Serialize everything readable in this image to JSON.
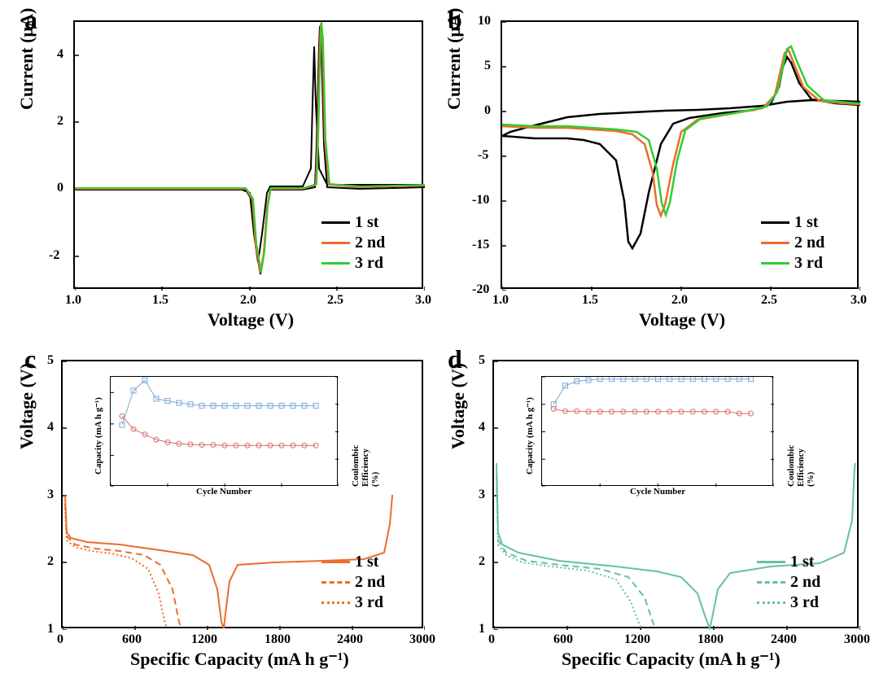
{
  "panels": {
    "a": {
      "letter": "a",
      "type": "line",
      "xlabel": "Voltage (V)",
      "ylabel": "Current (µA)",
      "xlim": [
        1.0,
        3.0
      ],
      "ylim": [
        -3,
        5
      ],
      "xticks": [
        1.0,
        1.5,
        2.0,
        2.5,
        3.0
      ],
      "yticks": [
        -2,
        0,
        2,
        4
      ],
      "series_colors": [
        "#000000",
        "#ee6c2d",
        "#33cc33"
      ],
      "legend_labels": [
        "1 st",
        "2 nd",
        "3 rd"
      ],
      "legend_pos": "bottom-right",
      "line_width": 2
    },
    "b": {
      "letter": "b",
      "type": "line",
      "xlabel": "Voltage (V)",
      "ylabel": "Current (µA)",
      "xlim": [
        1.0,
        3.0
      ],
      "ylim": [
        -20,
        10
      ],
      "xticks": [
        1.0,
        1.5,
        2.0,
        2.5,
        3.0
      ],
      "yticks": [
        -20,
        -15,
        -10,
        -5,
        0,
        5,
        10
      ],
      "series_colors": [
        "#000000",
        "#ee6c2d",
        "#33cc33"
      ],
      "legend_labels": [
        "1 st",
        "2 nd",
        "3 rd"
      ],
      "legend_pos": "bottom-right",
      "line_width": 2
    },
    "c": {
      "letter": "c",
      "type": "line",
      "xlabel": "Specific Capacity (mA h g⁻¹)",
      "ylabel": "Voltage (V)",
      "xlim": [
        0,
        3000
      ],
      "ylim": [
        1,
        5
      ],
      "xticks": [
        0,
        600,
        1200,
        1800,
        2400,
        3000
      ],
      "yticks": [
        1,
        2,
        3,
        4,
        5
      ],
      "line_color": "#ee6c2d",
      "line_styles": [
        "solid",
        "dashed",
        "dotted"
      ],
      "legend_labels": [
        "1 st",
        "2 nd",
        "3 rd"
      ],
      "legend_pos": "bottom-right",
      "line_width": 2,
      "inset": {
        "xlabel": "Cycle Number",
        "ylabel_left": "Capacity (mA h g⁻¹)",
        "ylabel_right": "Coulombic Efficiency (%)",
        "xlim": [
          0,
          20
        ],
        "ylim_left": [
          0,
          2100
        ],
        "ylim_right": [
          0,
          160
        ],
        "xticks": [
          0,
          5,
          10,
          15,
          20
        ],
        "yticks_left": [
          0,
          600,
          1200,
          1800
        ],
        "yticks_right": [
          40,
          80,
          120,
          160
        ],
        "capacity_color": "#d96d6d",
        "efficiency_color": "#7aa7d9",
        "capacity_marker": "circle",
        "efficiency_marker": "square",
        "cycles": [
          1,
          2,
          3,
          4,
          5,
          6,
          7,
          8,
          9,
          10,
          11,
          12,
          13,
          14,
          15,
          16,
          17,
          18
        ],
        "capacity_values": [
          1350,
          1100,
          1000,
          900,
          850,
          820,
          810,
          800,
          800,
          790,
          790,
          790,
          790,
          790,
          790,
          790,
          790,
          790
        ],
        "efficiency_values": [
          90,
          140,
          155,
          128,
          125,
          122,
          120,
          118,
          118,
          118,
          118,
          118,
          118,
          118,
          118,
          118,
          118,
          118
        ]
      }
    },
    "d": {
      "letter": "d",
      "type": "line",
      "xlabel": "Specific Capacity (mA h g⁻¹)",
      "ylabel": "Voltage (V)",
      "xlim": [
        0,
        3000
      ],
      "ylim": [
        1,
        5
      ],
      "xticks": [
        0,
        600,
        1200,
        1800,
        2400,
        3000
      ],
      "yticks": [
        1,
        2,
        3,
        4,
        5
      ],
      "line_color": "#66c29a",
      "line_styles": [
        "solid",
        "dashed",
        "dotted"
      ],
      "legend_labels": [
        "1 st",
        "2 nd",
        "3 rd"
      ],
      "legend_pos": "bottom-right",
      "line_width": 2,
      "inset": {
        "xlabel": "Cycle Number",
        "ylabel_left": "Capacity (mA h g⁻¹)",
        "ylabel_right": "Coulombic Efficiency (%)",
        "xlim": [
          0,
          20
        ],
        "ylim_left": [
          0,
          2400
        ],
        "ylim_right": [
          0,
          100
        ],
        "xticks": [
          0,
          5,
          10,
          15,
          20
        ],
        "yticks_left": [
          0,
          600,
          1200,
          1800,
          2400
        ],
        "yticks_right": [
          25,
          50,
          75,
          100
        ],
        "capacity_color": "#d96d6d",
        "efficiency_color": "#7aa7d9",
        "capacity_marker": "circle",
        "efficiency_marker": "square",
        "cycles": [
          1,
          2,
          3,
          4,
          5,
          6,
          7,
          8,
          9,
          10,
          11,
          12,
          13,
          14,
          15,
          16,
          17,
          18
        ],
        "capacity_values": [
          1700,
          1650,
          1650,
          1640,
          1640,
          1640,
          1640,
          1640,
          1640,
          1640,
          1640,
          1640,
          1640,
          1640,
          1640,
          1640,
          1600,
          1600
        ],
        "efficiency_values": [
          75,
          92,
          96,
          97,
          98,
          98,
          98,
          98,
          98,
          98,
          98,
          98,
          98,
          98,
          98,
          98,
          98,
          98
        ]
      }
    }
  }
}
